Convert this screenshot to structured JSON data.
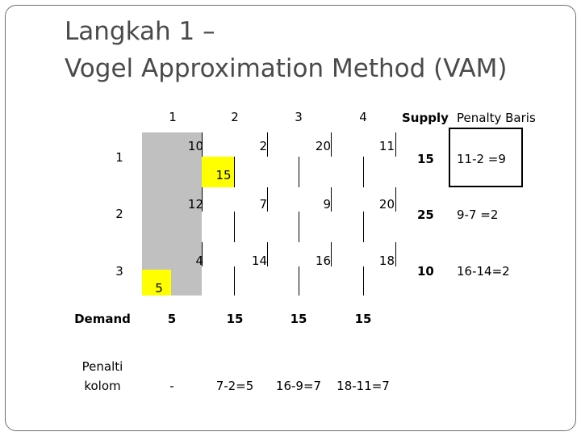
{
  "title": {
    "line1": "Langkah 1 –",
    "line2": "Vogel Approximation Method (VAM)"
  },
  "columns": [
    "1",
    "2",
    "3",
    "4"
  ],
  "headers": {
    "supply": "Supply",
    "row_penalty": "Penalty Baris"
  },
  "rows": [
    {
      "label": "1",
      "costs": [
        "10",
        "2",
        "20",
        "11"
      ],
      "supply": "15",
      "penalty": "11-2 =9"
    },
    {
      "label": "2",
      "costs": [
        "12",
        "7",
        "9",
        "20"
      ],
      "supply": "25",
      "penalty": "9-7 =2"
    },
    {
      "label": "3",
      "costs": [
        "4",
        "14",
        "16",
        "18"
      ],
      "supply": "10",
      "penalty": "16-14=2"
    }
  ],
  "allocations": {
    "r1c2": "15",
    "r3c1": "5"
  },
  "demand": {
    "label": "Demand",
    "values": [
      "5",
      "15",
      "15",
      "15"
    ]
  },
  "column_penalty": {
    "label_line1": "Penalti",
    "label_line2": "kolom",
    "values": [
      "-",
      "7-2=5",
      "16-9=7",
      "18-11=7"
    ]
  },
  "colors": {
    "shaded_column": "#c0c0c0",
    "allocation_highlight": "#ffff00",
    "title_text": "#4a4a4a"
  }
}
